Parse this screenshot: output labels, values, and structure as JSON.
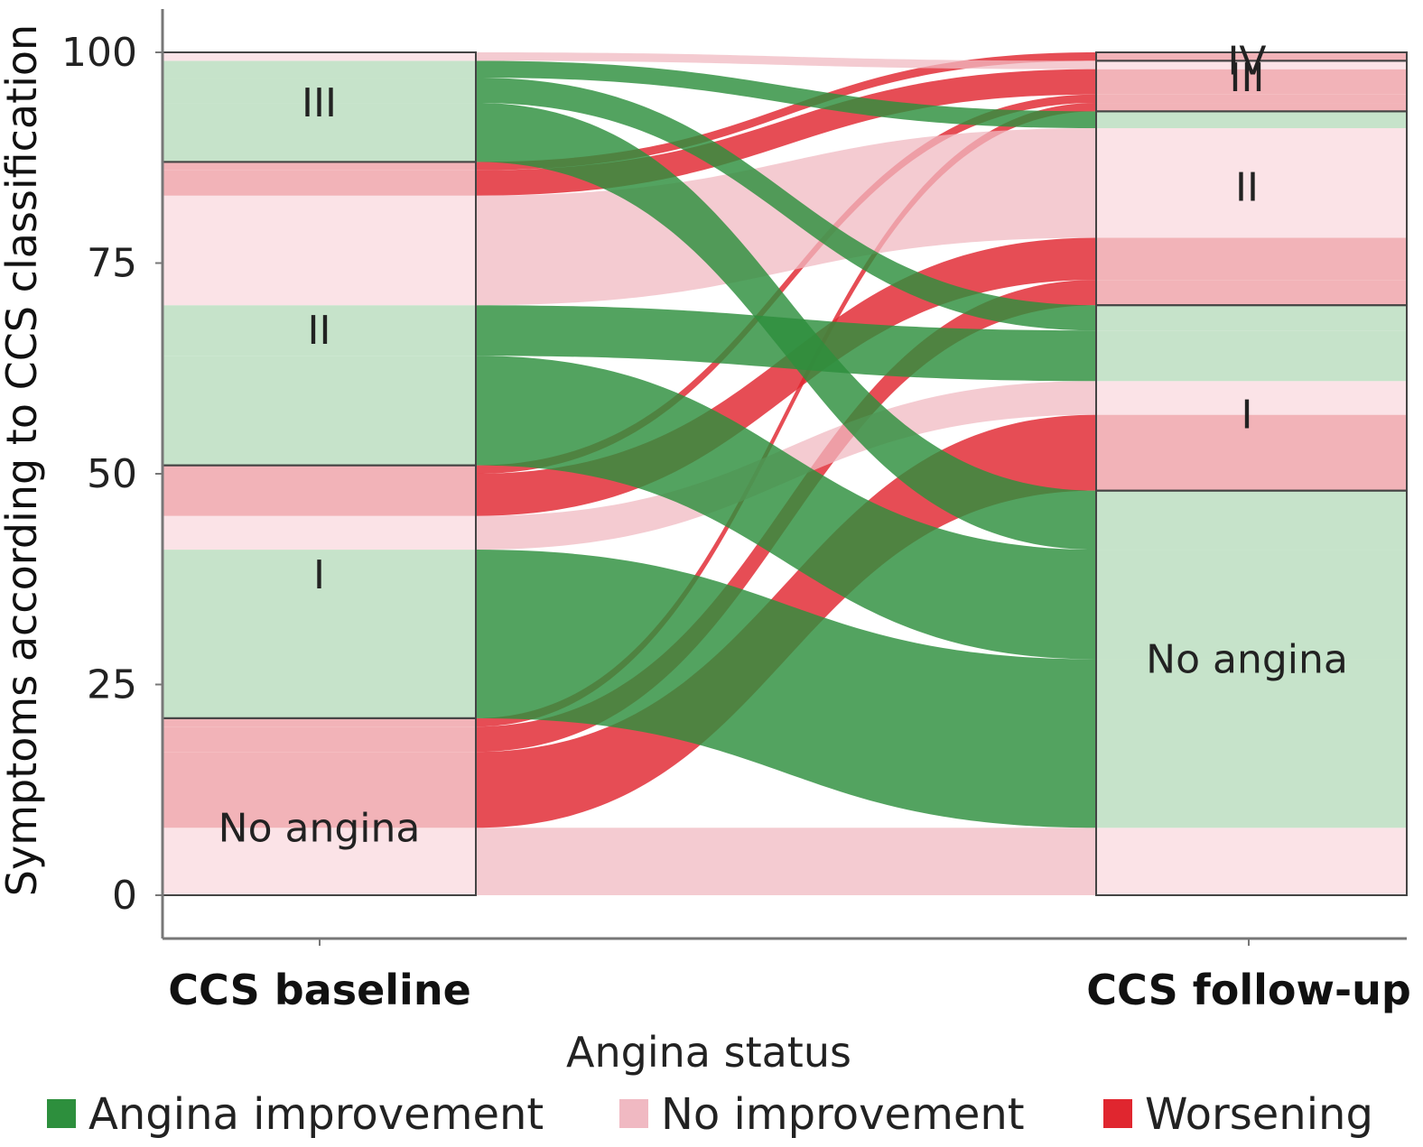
{
  "chart_data": {
    "type": "alluvial",
    "ylabel": "Symptoms according to CCS classification",
    "xlabel": "Angina status",
    "axes": [
      "CCS baseline",
      "CCS follow-up"
    ],
    "ylim": [
      0,
      100
    ],
    "yticks": [
      0,
      25,
      50,
      75,
      100
    ],
    "colors": {
      "Angina improvement": "#2d8f3d",
      "No improvement": "#f0b9c2",
      "Worsening": "#e0262f"
    },
    "legend": [
      {
        "label": "Angina improvement",
        "color": "#2d8f3d"
      },
      {
        "label": "No improvement",
        "color": "#f0b9c2"
      },
      {
        "label": "Worsening",
        "color": "#e0262f"
      }
    ],
    "strata": {
      "CCS baseline": [
        {
          "label": "No angina",
          "from": 0,
          "to": 21
        },
        {
          "label": "I",
          "from": 21,
          "to": 51
        },
        {
          "label": "II",
          "from": 51,
          "to": 87
        },
        {
          "label": "III",
          "from": 87,
          "to": 100
        }
      ],
      "CCS follow-up": [
        {
          "label": "No angina",
          "from": 0,
          "to": 48
        },
        {
          "label": "I",
          "from": 48,
          "to": 70
        },
        {
          "label": "II",
          "from": 70,
          "to": 93
        },
        {
          "label": "III",
          "from": 93,
          "to": 99
        },
        {
          "label": "IV",
          "from": 99,
          "to": 100
        }
      ]
    },
    "flows": [
      {
        "from": "No angina",
        "to": "No angina",
        "status": "No improvement",
        "value": 8
      },
      {
        "from": "No angina",
        "to": "I",
        "status": "Worsening",
        "value": 9
      },
      {
        "from": "No angina",
        "to": "II",
        "status": "Worsening",
        "value": 3
      },
      {
        "from": "No angina",
        "to": "III",
        "status": "Worsening",
        "value": 1
      },
      {
        "from": "I",
        "to": "No angina",
        "status": "Angina improvement",
        "value": 20
      },
      {
        "from": "I",
        "to": "I",
        "status": "No improvement",
        "value": 4
      },
      {
        "from": "I",
        "to": "II",
        "status": "Worsening",
        "value": 5
      },
      {
        "from": "I",
        "to": "III",
        "status": "Worsening",
        "value": 1
      },
      {
        "from": "II",
        "to": "No angina",
        "status": "Angina improvement",
        "value": 13
      },
      {
        "from": "II",
        "to": "I",
        "status": "Angina improvement",
        "value": 6
      },
      {
        "from": "II",
        "to": "II",
        "status": "No improvement",
        "value": 13
      },
      {
        "from": "II",
        "to": "III",
        "status": "Worsening",
        "value": 3
      },
      {
        "from": "II",
        "to": "IV",
        "status": "Worsening",
        "value": 1
      },
      {
        "from": "III",
        "to": "No angina",
        "status": "Angina improvement",
        "value": 7
      },
      {
        "from": "III",
        "to": "I",
        "status": "Angina improvement",
        "value": 3
      },
      {
        "from": "III",
        "to": "II",
        "status": "Angina improvement",
        "value": 2
      },
      {
        "from": "III",
        "to": "III",
        "status": "No improvement",
        "value": 1
      }
    ]
  }
}
